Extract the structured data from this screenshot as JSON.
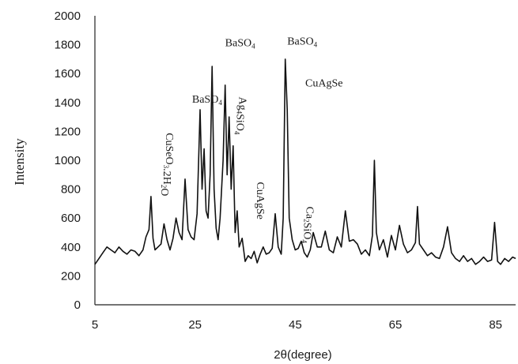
{
  "chart_data": {
    "type": "line",
    "title": "",
    "xlabel": "2θ(degree)",
    "ylabel": "Intensity",
    "xlim": [
      5,
      89
    ],
    "ylim": [
      0,
      2000
    ],
    "x_ticks": [
      "5",
      "25",
      "45",
      "65",
      "85"
    ],
    "y_ticks": [
      "0",
      "200",
      "400",
      "600",
      "800",
      "1000",
      "1200",
      "1400",
      "1600",
      "1800",
      "2000"
    ],
    "grid": false,
    "legend": "none",
    "series": [
      {
        "x": [
          5,
          5.8,
          6.6,
          7.4,
          8.2,
          9,
          9.8,
          10.6,
          11.4,
          12.2,
          13,
          13.8,
          14.6,
          15.2,
          15.8,
          16.2,
          16.6,
          17,
          17.6,
          18.2,
          18.8,
          19.4,
          20,
          20.6,
          21.2,
          21.8,
          22.4,
          23,
          23.6,
          24.2,
          24.8,
          25.4,
          26,
          26.4,
          26.8,
          27.2,
          27.6,
          28,
          28.4,
          28.8,
          29.2,
          29.6,
          30,
          30.6,
          31,
          31.4,
          31.8,
          32.2,
          32.6,
          33,
          33.4,
          33.8,
          34.4,
          35,
          35.6,
          36.2,
          36.8,
          37.4,
          38,
          38.6,
          39.2,
          39.8,
          40.4,
          41,
          41.6,
          42.2,
          42.6,
          43,
          43.4,
          43.8,
          44.4,
          45,
          45.6,
          46.2,
          46.8,
          47.4,
          48,
          48.6,
          49.4,
          50.2,
          51,
          51.8,
          52.6,
          53.4,
          54.2,
          55,
          55.8,
          56.6,
          57.4,
          58.2,
          59,
          59.8,
          60.4,
          60.8,
          61.2,
          61.8,
          62.6,
          63.4,
          64.2,
          65,
          65.8,
          66.6,
          67.4,
          68.2,
          69,
          69.4,
          69.8,
          70.6,
          71.4,
          72.2,
          73,
          73.8,
          74.6,
          75.4,
          76.2,
          77,
          77.8,
          78.6,
          79.4,
          80.2,
          81,
          81.8,
          82.6,
          83.4,
          84.2,
          84.8,
          85.4,
          86,
          86.8,
          87.6,
          88.4,
          89
        ],
        "y": [
          280,
          320,
          360,
          400,
          380,
          360,
          400,
          370,
          350,
          380,
          370,
          340,
          380,
          470,
          520,
          750,
          460,
          380,
          400,
          420,
          560,
          450,
          380,
          460,
          600,
          500,
          450,
          870,
          520,
          470,
          450,
          630,
          1350,
          800,
          1080,
          650,
          600,
          900,
          1650,
          800,
          530,
          450,
          600,
          1000,
          1520,
          900,
          1300,
          800,
          1100,
          500,
          650,
          400,
          460,
          300,
          340,
          320,
          370,
          290,
          350,
          400,
          350,
          360,
          390,
          630,
          400,
          350,
          600,
          1700,
          1350,
          600,
          450,
          380,
          390,
          440,
          360,
          330,
          380,
          500,
          400,
          400,
          510,
          380,
          360,
          470,
          400,
          650,
          440,
          450,
          420,
          350,
          380,
          340,
          480,
          1000,
          500,
          380,
          450,
          330,
          480,
          380,
          550,
          420,
          360,
          380,
          430,
          680,
          420,
          380,
          340,
          360,
          330,
          320,
          400,
          540,
          360,
          320,
          300,
          340,
          300,
          320,
          280,
          300,
          330,
          300,
          310,
          570,
          300,
          280,
          320,
          300,
          330,
          320
        ]
      }
    ],
    "annotations": [
      {
        "text": "BaSO",
        "sub": "4",
        "x": 31,
        "y": 1790,
        "rotate": 0
      },
      {
        "text": "BaSO",
        "sub": "4",
        "x": 43.4,
        "y": 1800,
        "rotate": 0
      },
      {
        "text": "CuAgSe",
        "x": 47,
        "y": 1510,
        "rotate": 0
      },
      {
        "text": "BaSO",
        "sub": "4",
        "x": 24.4,
        "y": 1400,
        "rotate": 0
      },
      {
        "text": "Ag",
        "sub": "4",
        "text2": "SiO",
        "sub2": "4",
        "x": 33.8,
        "y": 1440,
        "rotate": 90
      },
      {
        "text": "CuSeO",
        "sub": "3",
        "text2": ".2H",
        "sub2": "2",
        "text3": "O",
        "x": 19.2,
        "y": 1190,
        "rotate": 90
      },
      {
        "text": "CuAgSe",
        "x": 37.4,
        "y": 850,
        "rotate": 90
      },
      {
        "text": "Ca",
        "sub": "2",
        "text2": "SiO",
        "sub2": "4",
        "x": 47.2,
        "y": 680,
        "rotate": 90
      }
    ]
  }
}
